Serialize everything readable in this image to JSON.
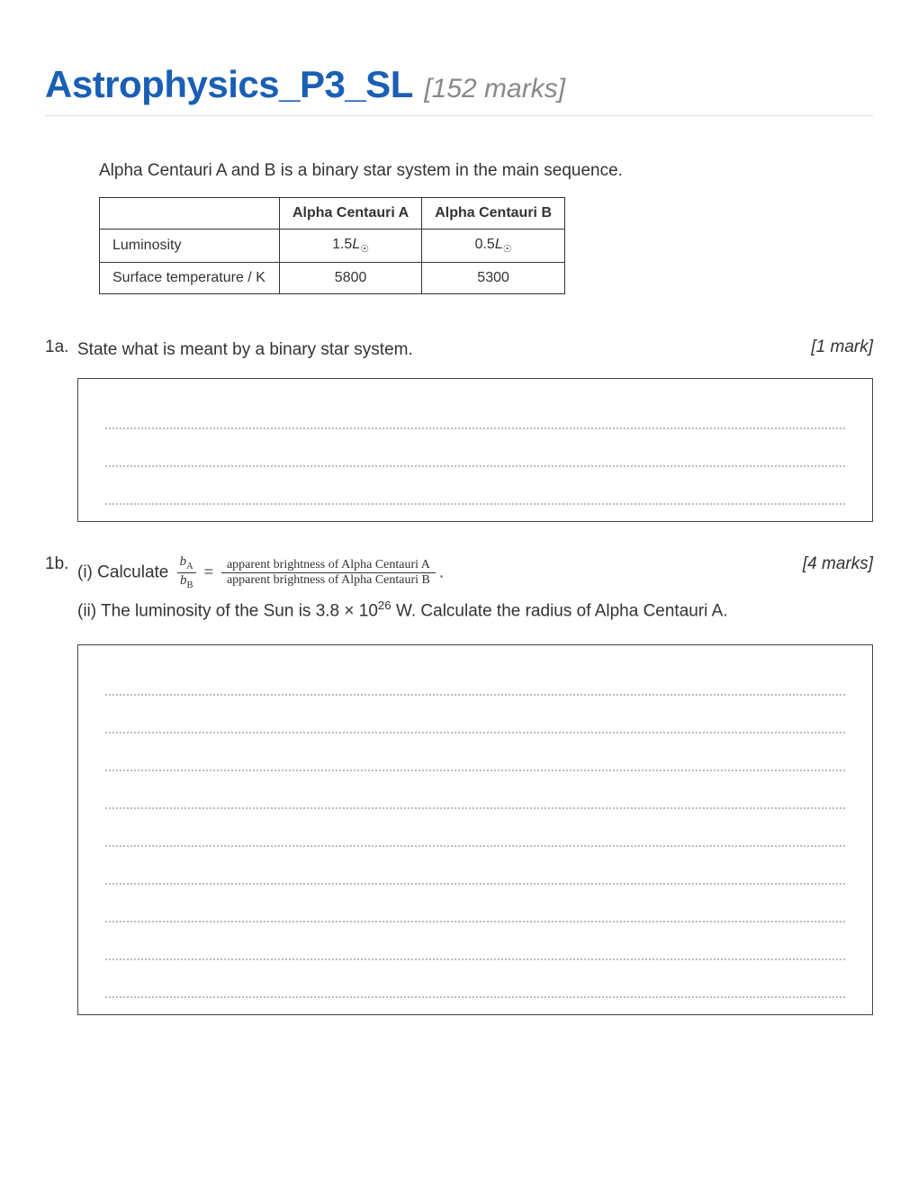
{
  "title": "Astrophysics_P3_SL",
  "total_marks_label": "[152 marks]",
  "colors": {
    "title": "#1a5fb4",
    "marks": "#888888",
    "text": "#333333",
    "border": "#333333",
    "dotted": "#bbbbbb",
    "hr": "#dddddd"
  },
  "intro": "Alpha Centauri A and B is a binary star system in the main sequence.",
  "table": {
    "columns": [
      "",
      "Alpha Centauri A",
      "Alpha Centauri B"
    ],
    "rows": [
      {
        "label": "Luminosity",
        "a_val": "1.5",
        "a_unit": "L",
        "a_sub": "☉",
        "b_val": "0.5",
        "b_unit": "L",
        "b_sub": "☉"
      },
      {
        "label": "Surface temperature / K",
        "a_val": "5800",
        "a_unit": "",
        "a_sub": "",
        "b_val": "5300",
        "b_unit": "",
        "b_sub": ""
      }
    ]
  },
  "q1a": {
    "num": "1a.",
    "text": "State what is meant by a binary star system.",
    "marks": "[1 mark]",
    "answer_lines": 3
  },
  "q1b": {
    "num": "1b.",
    "marks": "[4 marks]",
    "part_i_prefix": "(i) Calculate ",
    "frac_left_num": "b",
    "frac_left_num_sub": "A",
    "frac_left_den": "b",
    "frac_left_den_sub": "B",
    "equals": " = ",
    "frac_right_num": "apparent brightness of Alpha Centauri A",
    "frac_right_den": "apparent brightness of Alpha Centauri B",
    "part_i_suffix": ".",
    "part_ii_a": "(ii) The luminosity of the Sun is 3.8 × 10",
    "part_ii_exp": "26",
    "part_ii_b": " W. Calculate the radius of Alpha Centauri A.",
    "answer_lines": 9
  }
}
